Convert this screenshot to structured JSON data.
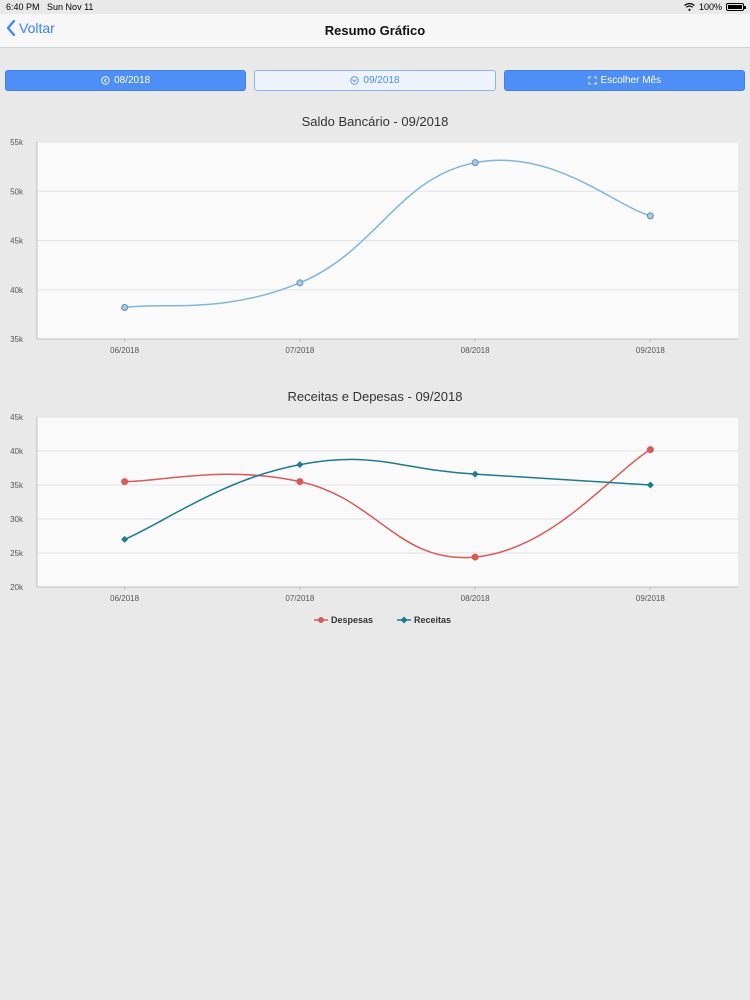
{
  "status": {
    "time": "6:40 PM",
    "date": "Sun Nov 11",
    "battery": "100%",
    "battery_level": 1.0
  },
  "nav": {
    "back_label": "Voltar",
    "title": "Resumo Gráfico"
  },
  "toolbar": {
    "prev_label": "08/2018",
    "current_label": "09/2018",
    "choose_label": "Escolher Mês"
  },
  "colors": {
    "accent": "#4e8ef7",
    "saldo": "#7fb6dd",
    "despesas": "#d85b57",
    "receitas": "#1f7a8f"
  },
  "chart_data": [
    {
      "type": "line",
      "title": "Saldo Bancário - 09/2018",
      "categories": [
        "06/2018",
        "07/2018",
        "08/2018",
        "09/2018"
      ],
      "series": [
        {
          "values": [
            38200,
            40700,
            52900,
            47500
          ]
        }
      ],
      "ylim": [
        35000,
        55000
      ],
      "yticks": [
        "35k",
        "40k",
        "45k",
        "50k",
        "55k"
      ],
      "grid": true
    },
    {
      "type": "line",
      "title": "Receitas e Depesas - 09/2018",
      "categories": [
        "06/2018",
        "07/2018",
        "08/2018",
        "09/2018"
      ],
      "series": [
        {
          "name": "Despesas",
          "values": [
            35500,
            35500,
            24400,
            40200
          ]
        },
        {
          "name": "Receitas",
          "values": [
            27000,
            38000,
            36600,
            35000
          ]
        }
      ],
      "ylim": [
        20000,
        45000
      ],
      "yticks": [
        "20k",
        "25k",
        "30k",
        "35k",
        "40k",
        "45k"
      ],
      "legend": "bottom-center",
      "grid": true
    }
  ]
}
